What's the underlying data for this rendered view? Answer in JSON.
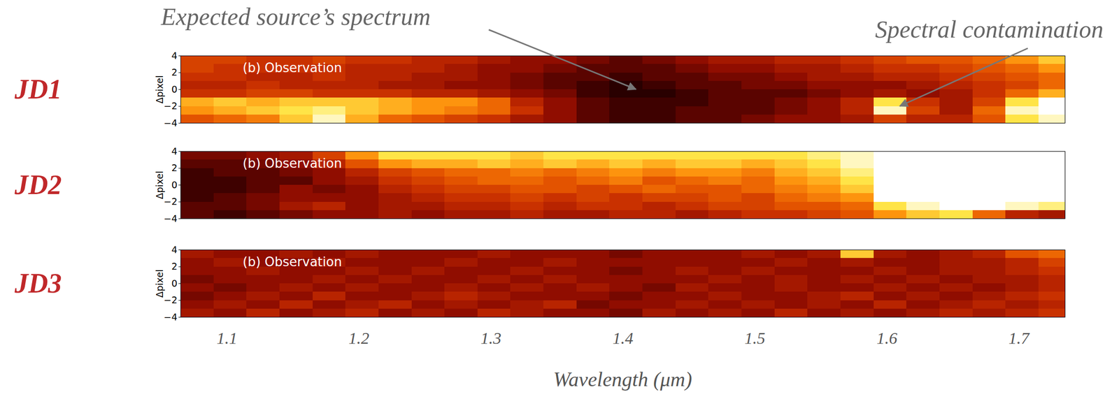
{
  "chart_data": [
    {
      "type": "heatmap",
      "title": "JD1",
      "subtitle": "(b) Observation",
      "y_label": "Δpixel",
      "xlim": [
        1.065,
        1.735
      ],
      "ylim": [
        -4,
        4
      ],
      "yticks": [
        -4,
        -2,
        0,
        2,
        4
      ],
      "tick_labels": "y",
      "zlim": [
        0,
        1
      ],
      "x_edges": [
        1.065,
        1.09,
        1.115,
        1.14,
        1.165,
        1.19,
        1.215,
        1.24,
        1.265,
        1.29,
        1.315,
        1.34,
        1.365,
        1.39,
        1.415,
        1.44,
        1.465,
        1.49,
        1.515,
        1.54,
        1.565,
        1.59,
        1.615,
        1.64,
        1.665,
        1.69,
        1.715,
        1.74
      ],
      "y_edges": [
        -4,
        -3,
        -2,
        -1,
        0,
        1,
        2,
        3,
        4
      ],
      "cells": [
        [
          0.55,
          0.6,
          0.65,
          0.8,
          0.95,
          0.75,
          0.6,
          0.55,
          0.5,
          0.45,
          0.35,
          0.3,
          0.2,
          0.15,
          0.15,
          0.2,
          0.2,
          0.25,
          0.3,
          0.3,
          0.35,
          0.5,
          0.4,
          0.4,
          0.55,
          0.85,
          0.95
        ],
        [
          0.7,
          0.75,
          0.8,
          0.85,
          0.9,
          0.8,
          0.75,
          0.7,
          0.65,
          0.6,
          0.45,
          0.3,
          0.2,
          0.15,
          0.15,
          0.2,
          0.2,
          0.2,
          0.25,
          0.3,
          0.4,
          0.95,
          0.5,
          0.35,
          0.6,
          0.95,
          1
        ],
        [
          0.75,
          0.8,
          0.75,
          0.8,
          0.8,
          0.8,
          0.75,
          0.7,
          0.7,
          0.6,
          0.4,
          0.3,
          0.2,
          0.15,
          0.15,
          0.15,
          0.2,
          0.2,
          0.25,
          0.3,
          0.4,
          0.85,
          0.45,
          0.35,
          0.5,
          0.85,
          1
        ],
        [
          0.45,
          0.45,
          0.5,
          0.5,
          0.45,
          0.45,
          0.45,
          0.4,
          0.4,
          0.35,
          0.3,
          0.25,
          0.15,
          0.1,
          0.1,
          0.15,
          0.2,
          0.2,
          0.2,
          0.25,
          0.3,
          0.35,
          0.3,
          0.35,
          0.45,
          0.6,
          0.75
        ],
        [
          0.4,
          0.4,
          0.45,
          0.4,
          0.4,
          0.4,
          0.35,
          0.35,
          0.3,
          0.3,
          0.25,
          0.2,
          0.15,
          0.1,
          0.15,
          0.2,
          0.2,
          0.25,
          0.25,
          0.3,
          0.3,
          0.3,
          0.35,
          0.4,
          0.45,
          0.5,
          0.6
        ],
        [
          0.45,
          0.45,
          0.4,
          0.4,
          0.45,
          0.4,
          0.4,
          0.35,
          0.35,
          0.3,
          0.25,
          0.2,
          0.2,
          0.15,
          0.2,
          0.2,
          0.25,
          0.25,
          0.3,
          0.35,
          0.35,
          0.4,
          0.4,
          0.45,
          0.5,
          0.55,
          0.6
        ],
        [
          0.5,
          0.45,
          0.45,
          0.45,
          0.45,
          0.4,
          0.4,
          0.4,
          0.35,
          0.3,
          0.3,
          0.25,
          0.2,
          0.2,
          0.2,
          0.25,
          0.3,
          0.3,
          0.35,
          0.35,
          0.4,
          0.45,
          0.45,
          0.5,
          0.55,
          0.6,
          0.7
        ],
        [
          0.5,
          0.5,
          0.45,
          0.45,
          0.5,
          0.45,
          0.45,
          0.4,
          0.4,
          0.35,
          0.3,
          0.3,
          0.25,
          0.2,
          0.25,
          0.3,
          0.35,
          0.35,
          0.4,
          0.4,
          0.45,
          0.5,
          0.55,
          0.55,
          0.6,
          0.7,
          0.8
        ]
      ],
      "annotations": [
        {
          "text": "Expected source’s spectrum",
          "x": 1.41,
          "y": 0
        },
        {
          "text": "Spectral contamination",
          "x": 1.61,
          "y": -2
        }
      ]
    },
    {
      "type": "heatmap",
      "title": "JD2",
      "subtitle": "(b) Observation",
      "y_label": "Δpixel",
      "xlim": [
        1.065,
        1.735
      ],
      "ylim": [
        -4,
        4
      ],
      "yticks": [
        -4,
        -2,
        0,
        2,
        4
      ],
      "tick_labels": "y",
      "zlim": [
        0,
        1
      ],
      "x_edges": [
        1.065,
        1.09,
        1.115,
        1.14,
        1.165,
        1.19,
        1.215,
        1.24,
        1.265,
        1.29,
        1.315,
        1.34,
        1.365,
        1.39,
        1.415,
        1.44,
        1.465,
        1.49,
        1.515,
        1.54,
        1.565,
        1.59,
        1.615,
        1.64,
        1.665,
        1.69,
        1.715,
        1.74
      ],
      "y_edges": [
        -4,
        -3,
        -2,
        -1,
        0,
        1,
        2,
        3,
        4
      ],
      "cells": [
        [
          0.2,
          0.15,
          0.2,
          0.25,
          0.3,
          0.3,
          0.35,
          0.3,
          0.35,
          0.35,
          0.4,
          0.35,
          0.35,
          0.4,
          0.4,
          0.35,
          0.4,
          0.45,
          0.45,
          0.5,
          0.55,
          0.7,
          0.8,
          0.85,
          0.6,
          0.4,
          0.35
        ],
        [
          0.2,
          0.2,
          0.25,
          0.35,
          0.4,
          0.3,
          0.35,
          0.35,
          0.4,
          0.4,
          0.45,
          0.4,
          0.45,
          0.45,
          0.4,
          0.45,
          0.5,
          0.5,
          0.55,
          0.55,
          0.6,
          0.85,
          0.95,
          1,
          1,
          0.95,
          0.9
        ],
        [
          0.15,
          0.2,
          0.25,
          0.3,
          0.3,
          0.3,
          0.35,
          0.4,
          0.45,
          0.45,
          0.5,
          0.45,
          0.5,
          0.45,
          0.5,
          0.5,
          0.55,
          0.5,
          0.6,
          0.65,
          0.7,
          1,
          1,
          1,
          1,
          1,
          1
        ],
        [
          0.15,
          0.15,
          0.2,
          0.3,
          0.25,
          0.3,
          0.4,
          0.45,
          0.5,
          0.5,
          0.55,
          0.55,
          0.5,
          0.55,
          0.6,
          0.55,
          0.55,
          0.6,
          0.65,
          0.7,
          0.8,
          1,
          1,
          1,
          1,
          1,
          1
        ],
        [
          0.15,
          0.15,
          0.2,
          0.2,
          0.3,
          0.35,
          0.45,
          0.5,
          0.55,
          0.6,
          0.6,
          0.55,
          0.6,
          0.65,
          0.55,
          0.6,
          0.65,
          0.6,
          0.7,
          0.75,
          0.85,
          1,
          1,
          1,
          1,
          1,
          1
        ],
        [
          0.15,
          0.2,
          0.2,
          0.25,
          0.3,
          0.4,
          0.5,
          0.55,
          0.6,
          0.6,
          0.65,
          0.6,
          0.65,
          0.7,
          0.65,
          0.7,
          0.7,
          0.65,
          0.75,
          0.8,
          0.9,
          1,
          1,
          1,
          1,
          1,
          1
        ],
        [
          0.2,
          0.2,
          0.25,
          0.3,
          0.4,
          0.55,
          0.7,
          0.75,
          0.75,
          0.8,
          0.75,
          0.8,
          0.75,
          0.8,
          0.75,
          0.8,
          0.8,
          0.75,
          0.8,
          0.85,
          0.95,
          1,
          1,
          1,
          1,
          1,
          1
        ],
        [
          0.25,
          0.25,
          0.3,
          0.35,
          0.5,
          0.7,
          0.85,
          0.85,
          0.85,
          0.85,
          0.8,
          0.85,
          0.85,
          0.85,
          0.85,
          0.85,
          0.85,
          0.85,
          0.85,
          0.9,
          0.95,
          1,
          1,
          1,
          1,
          1,
          1
        ]
      ]
    },
    {
      "type": "heatmap",
      "title": "JD3",
      "subtitle": "(b) Observation",
      "y_label": "Δpixel",
      "x_label": "Wavelength (μm)",
      "xlim": [
        1.065,
        1.735
      ],
      "ylim": [
        -4,
        4
      ],
      "xticks": [
        1.1,
        1.2,
        1.3,
        1.4,
        1.5,
        1.6,
        1.7
      ],
      "yticks": [
        -4,
        -2,
        0,
        2,
        4
      ],
      "zlim": [
        0,
        1
      ],
      "x_edges": [
        1.065,
        1.09,
        1.115,
        1.14,
        1.165,
        1.19,
        1.215,
        1.24,
        1.265,
        1.29,
        1.315,
        1.34,
        1.365,
        1.39,
        1.415,
        1.44,
        1.465,
        1.49,
        1.515,
        1.54,
        1.565,
        1.59,
        1.615,
        1.64,
        1.665,
        1.69,
        1.715,
        1.74
      ],
      "y_edges": [
        -4,
        -3,
        -2,
        -1,
        0,
        1,
        2,
        3,
        4
      ],
      "cells": [
        [
          0.35,
          0.3,
          0.4,
          0.3,
          0.35,
          0.4,
          0.3,
          0.35,
          0.3,
          0.4,
          0.35,
          0.3,
          0.3,
          0.25,
          0.35,
          0.3,
          0.35,
          0.3,
          0.4,
          0.3,
          0.35,
          0.3,
          0.35,
          0.4,
          0.35,
          0.4,
          0.45
        ],
        [
          0.3,
          0.35,
          0.3,
          0.4,
          0.3,
          0.35,
          0.4,
          0.3,
          0.35,
          0.3,
          0.35,
          0.4,
          0.25,
          0.3,
          0.3,
          0.35,
          0.3,
          0.35,
          0.3,
          0.35,
          0.3,
          0.4,
          0.3,
          0.35,
          0.4,
          0.35,
          0.4
        ],
        [
          0.25,
          0.3,
          0.35,
          0.3,
          0.4,
          0.3,
          0.3,
          0.35,
          0.4,
          0.35,
          0.3,
          0.3,
          0.3,
          0.25,
          0.3,
          0.3,
          0.35,
          0.3,
          0.3,
          0.35,
          0.4,
          0.3,
          0.35,
          0.3,
          0.35,
          0.4,
          0.45
        ],
        [
          0.3,
          0.25,
          0.3,
          0.35,
          0.3,
          0.35,
          0.3,
          0.3,
          0.35,
          0.3,
          0.35,
          0.3,
          0.35,
          0.3,
          0.25,
          0.35,
          0.3,
          0.3,
          0.35,
          0.3,
          0.3,
          0.35,
          0.3,
          0.35,
          0.3,
          0.35,
          0.4
        ],
        [
          0.25,
          0.3,
          0.3,
          0.3,
          0.35,
          0.3,
          0.35,
          0.3,
          0.3,
          0.35,
          0.3,
          0.35,
          0.3,
          0.3,
          0.3,
          0.3,
          0.35,
          0.3,
          0.35,
          0.3,
          0.35,
          0.3,
          0.35,
          0.3,
          0.35,
          0.35,
          0.4
        ],
        [
          0.3,
          0.3,
          0.35,
          0.3,
          0.3,
          0.35,
          0.3,
          0.35,
          0.3,
          0.3,
          0.35,
          0.3,
          0.3,
          0.25,
          0.3,
          0.35,
          0.3,
          0.35,
          0.3,
          0.3,
          0.3,
          0.35,
          0.3,
          0.35,
          0.35,
          0.4,
          0.45
        ],
        [
          0.3,
          0.35,
          0.3,
          0.3,
          0.35,
          0.3,
          0.3,
          0.3,
          0.35,
          0.3,
          0.3,
          0.35,
          0.3,
          0.3,
          0.3,
          0.3,
          0.3,
          0.3,
          0.35,
          0.3,
          0.35,
          0.3,
          0.3,
          0.35,
          0.35,
          0.4,
          0.5
        ],
        [
          0.35,
          0.3,
          0.3,
          0.35,
          0.3,
          0.35,
          0.3,
          0.3,
          0.3,
          0.35,
          0.3,
          0.3,
          0.3,
          0.25,
          0.3,
          0.3,
          0.3,
          0.35,
          0.3,
          0.35,
          0.8,
          0.35,
          0.3,
          0.35,
          0.4,
          0.55,
          0.6
        ]
      ]
    }
  ]
}
